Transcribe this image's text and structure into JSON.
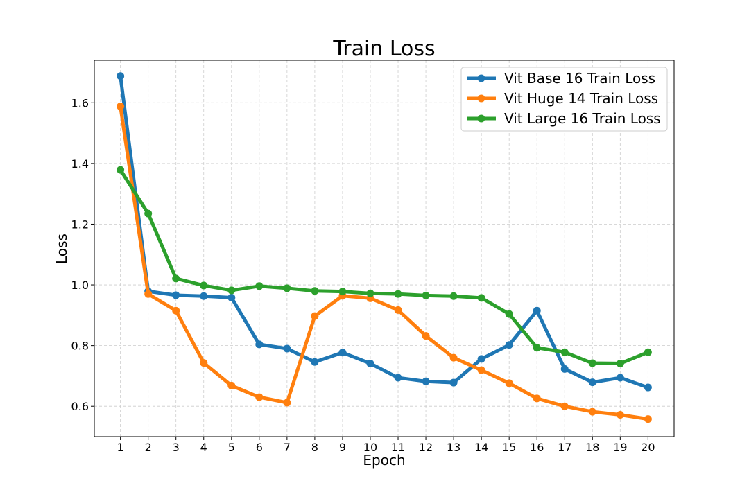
{
  "chart_data": {
    "type": "line",
    "title": "Train Loss",
    "xlabel": "Epoch",
    "ylabel": "Loss",
    "x": [
      1,
      2,
      3,
      4,
      5,
      6,
      7,
      8,
      9,
      10,
      11,
      12,
      13,
      14,
      15,
      16,
      17,
      18,
      19,
      20
    ],
    "xlim": [
      0.06,
      20.94
    ],
    "ylim": [
      0.5,
      1.74
    ],
    "yticks": [
      0.6,
      0.8,
      1.0,
      1.2,
      1.4,
      1.6
    ],
    "grid": true,
    "legend_position": "top-right",
    "series": [
      {
        "name": "Vit Base 16 Train Loss",
        "color": "#1f77b4",
        "values": [
          1.688,
          0.979,
          0.966,
          0.963,
          0.958,
          0.804,
          0.79,
          0.746,
          0.777,
          0.741,
          0.694,
          0.682,
          0.678,
          0.756,
          0.802,
          0.915,
          0.723,
          0.679,
          0.694,
          0.662
        ]
      },
      {
        "name": "Vit Huge 14 Train Loss",
        "color": "#ff7f0e",
        "values": [
          1.588,
          0.97,
          0.915,
          0.743,
          0.668,
          0.63,
          0.612,
          0.897,
          0.964,
          0.956,
          0.917,
          0.832,
          0.76,
          0.719,
          0.676,
          0.626,
          0.6,
          0.582,
          0.572,
          0.558
        ]
      },
      {
        "name": "Vit Large 16 Train Loss",
        "color": "#2ca02c",
        "values": [
          1.379,
          1.235,
          1.021,
          0.998,
          0.982,
          0.996,
          0.989,
          0.98,
          0.978,
          0.972,
          0.97,
          0.965,
          0.963,
          0.957,
          0.904,
          0.793,
          0.778,
          0.742,
          0.741,
          0.778
        ]
      }
    ]
  }
}
